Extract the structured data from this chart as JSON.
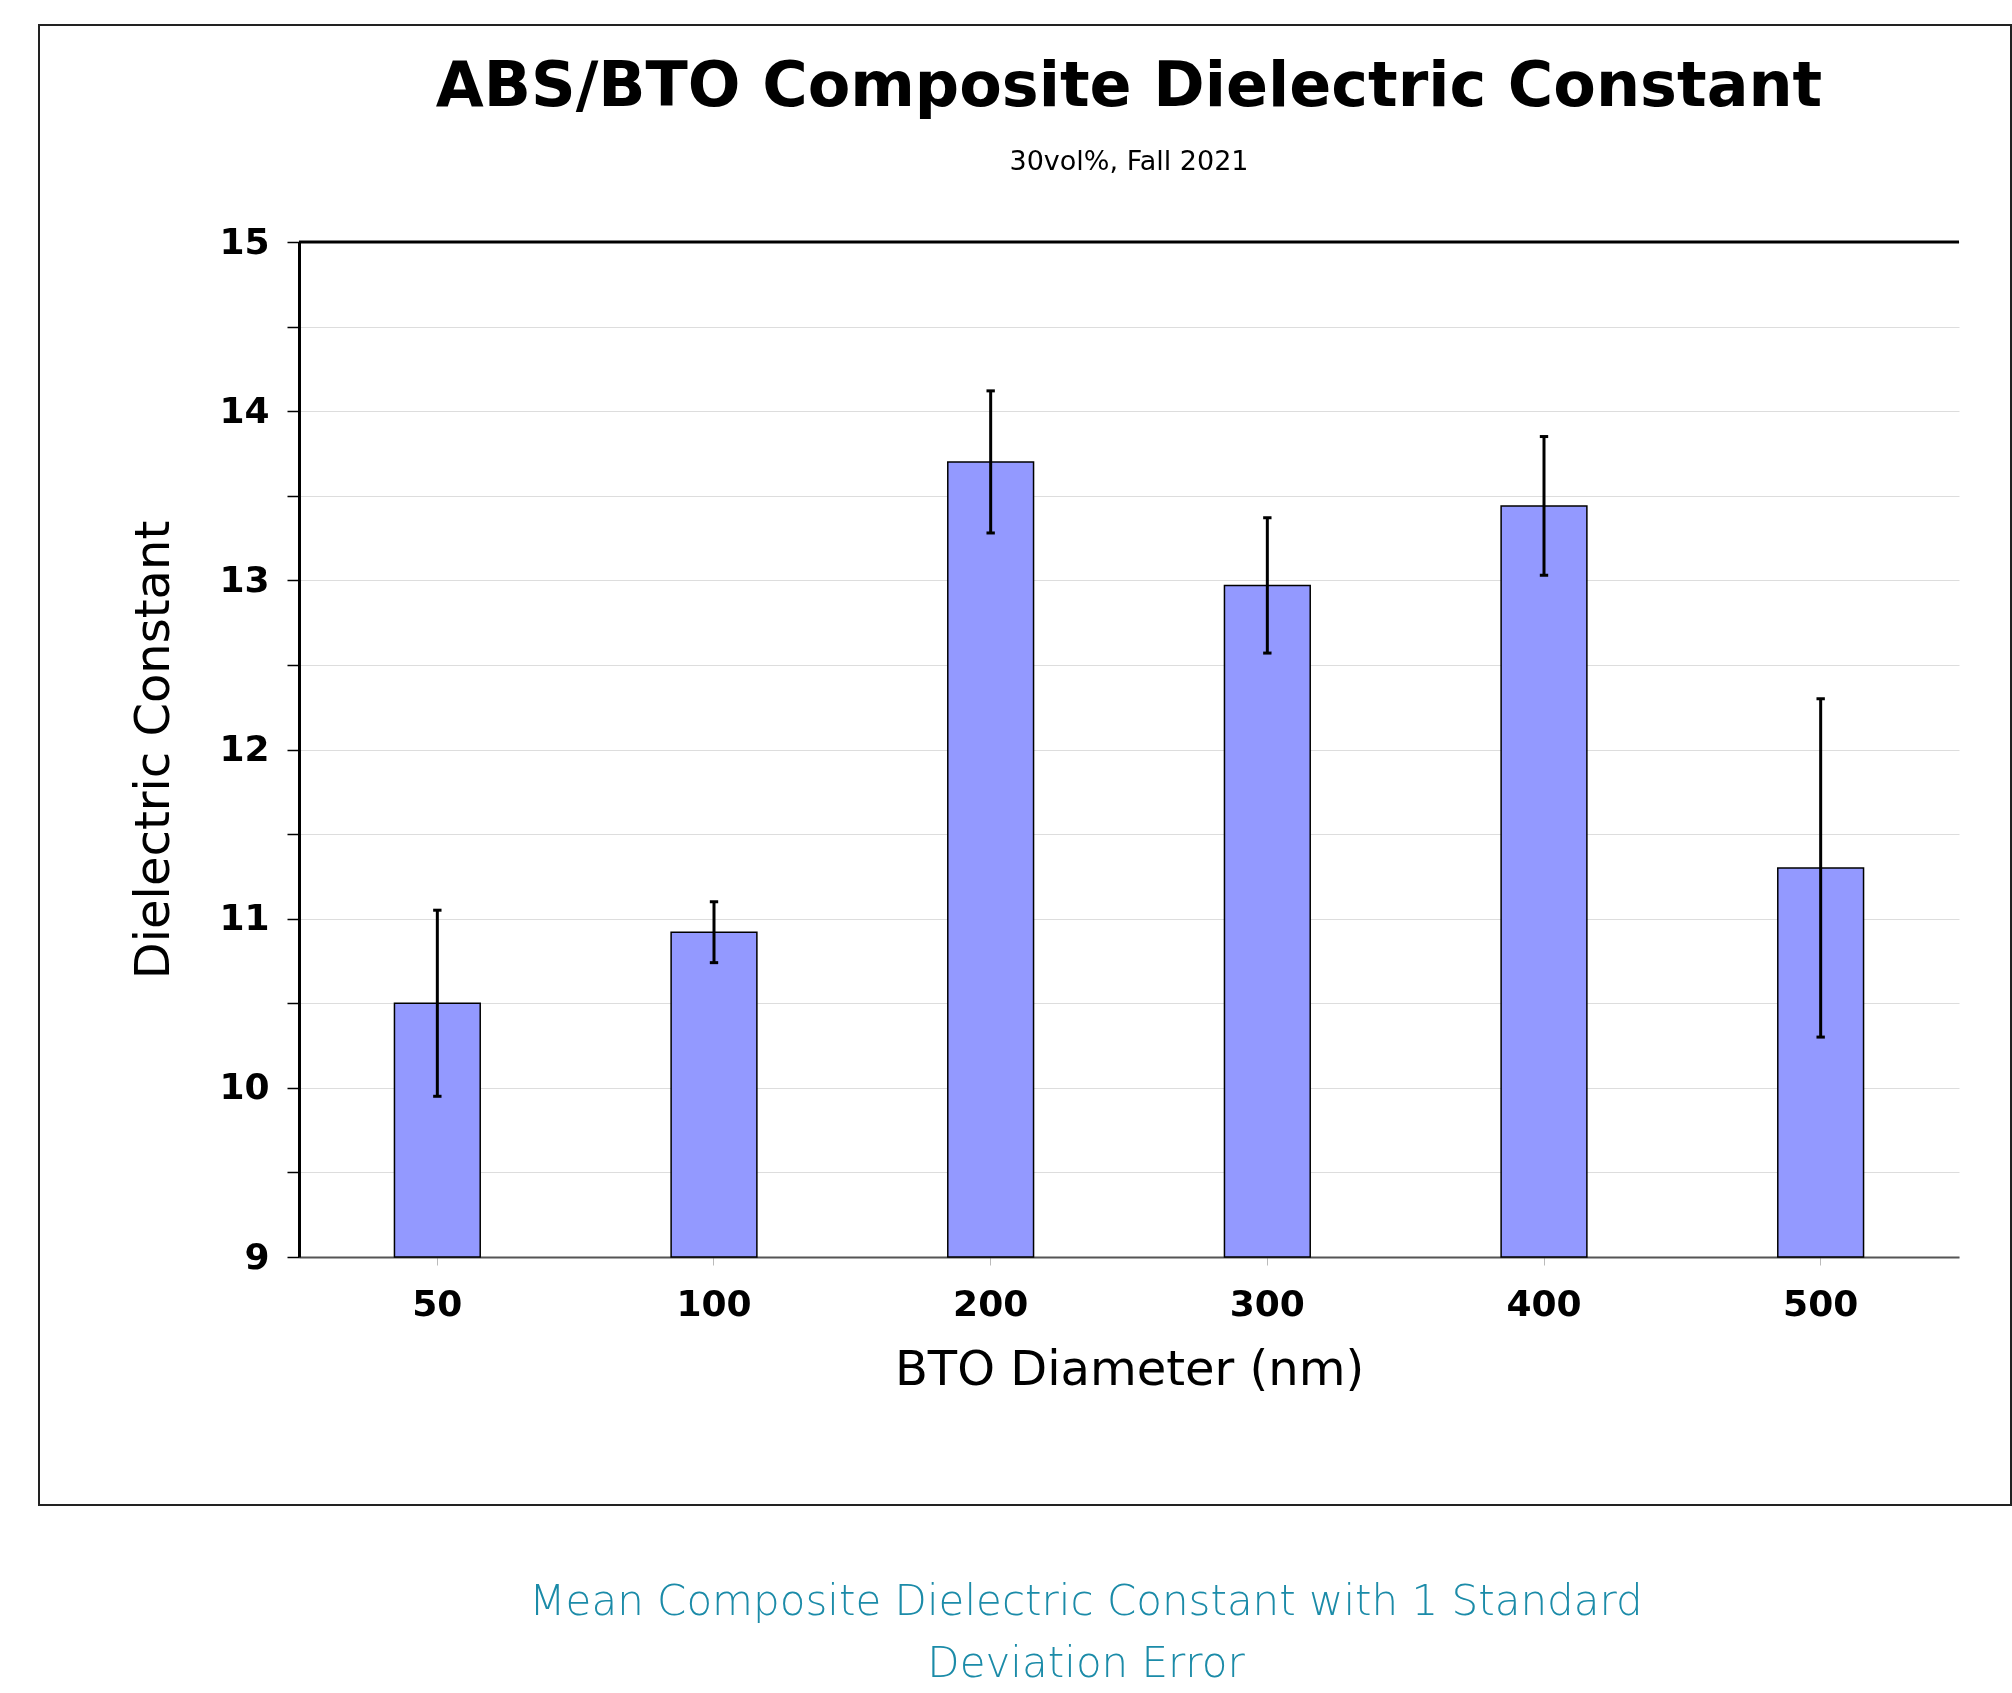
{
  "chart_data": {
    "type": "bar",
    "title": "ABS/BTO Composite Dielectric Constant",
    "subtitle": "30vol%, Fall 2021",
    "xlabel": "BTO Diameter (nm)",
    "ylabel": "Dielectric Constant",
    "categories": [
      "50",
      "100",
      "200",
      "300",
      "400",
      "500"
    ],
    "values": [
      10.5,
      10.92,
      13.7,
      12.97,
      13.44,
      11.3
    ],
    "errors": [
      0.55,
      0.18,
      0.42,
      0.4,
      0.41,
      1.0
    ],
    "color": "#9399ff",
    "ylim": [
      9,
      15
    ],
    "yticks": [
      9,
      {
        "value": 9.5,
        "label": null
      },
      10,
      {
        "value": 10.5,
        "label": null
      },
      11,
      {
        "value": 11.5,
        "label": null
      },
      12,
      {
        "value": 12.5,
        "label": null
      },
      13,
      {
        "value": 13.5,
        "label": null
      },
      14,
      {
        "value": 14.5,
        "label": null
      },
      15
    ],
    "grid": "y",
    "annotations": [
      "Mean Composite Dielectric Constant with 1 Standard Deviation Error"
    ]
  }
}
